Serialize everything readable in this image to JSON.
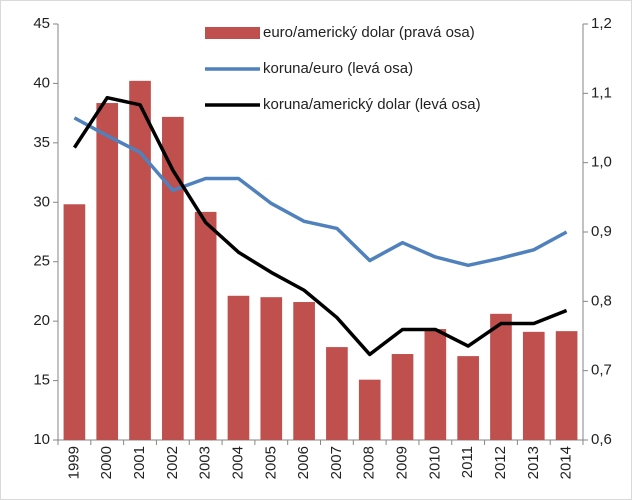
{
  "chart_data": {
    "type": "bar-line",
    "categories": [
      "1999",
      "2000",
      "2001",
      "2002",
      "2003",
      "2004",
      "2005",
      "2006",
      "2007",
      "2008",
      "2009",
      "2010",
      "2011",
      "2012",
      "2013",
      "2014"
    ],
    "series": [
      {
        "name": "euro/americký dolar (pravá osa)",
        "type": "bar",
        "axis": "y2",
        "color": "#c0504d",
        "values": [
          0.94,
          1.086,
          1.118,
          1.066,
          0.929,
          0.808,
          0.806,
          0.799,
          0.734,
          0.687,
          0.724,
          0.76,
          0.721,
          0.782,
          0.756,
          0.757
        ]
      },
      {
        "name": "koruna/euro (levá osa)",
        "type": "line",
        "color": "#4f81bd",
        "values": [
          37.1,
          35.6,
          34.2,
          31.0,
          32.0,
          32.0,
          29.9,
          28.4,
          27.8,
          25.1,
          26.6,
          25.4,
          24.7,
          25.3,
          26.0,
          27.5
        ]
      },
      {
        "name": "koruna/americký dolar (levá osa)",
        "type": "line",
        "color": "#000000",
        "values": [
          34.6,
          38.8,
          38.2,
          32.7,
          28.3,
          25.8,
          24.1,
          22.6,
          20.3,
          17.2,
          19.3,
          19.3,
          17.9,
          19.8,
          19.8,
          20.9
        ]
      }
    ],
    "ylim": [
      10,
      45
    ],
    "yticks": [
      10,
      15,
      20,
      25,
      30,
      35,
      40,
      45
    ],
    "y2lim": [
      0.6,
      1.2
    ],
    "y2ticks": [
      {
        "value": 0.6,
        "label": "0,6"
      },
      {
        "value": 0.7,
        "label": "0,7"
      },
      {
        "value": 0.8,
        "label": "0,8"
      },
      {
        "value": 0.9,
        "label": "0,9"
      },
      {
        "value": 1.0,
        "label": "1,0"
      },
      {
        "value": 1.1,
        "label": "1,1"
      },
      {
        "value": 1.2,
        "label": "1,2"
      }
    ],
    "legend": "top-right"
  }
}
